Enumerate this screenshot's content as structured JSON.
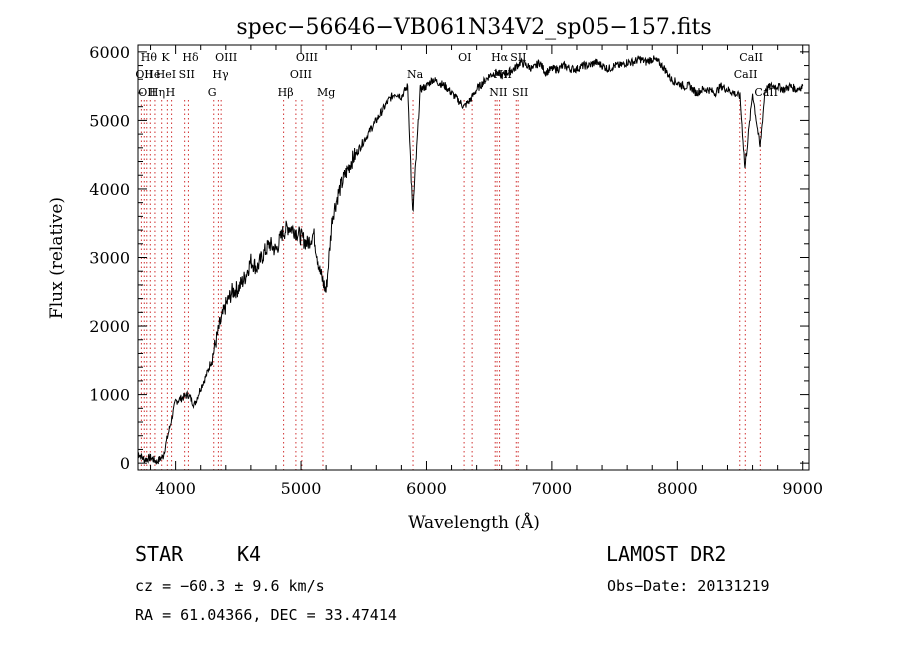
{
  "chart_data": {
    "type": "line",
    "title": "spec−56646−VB061N34V2_sp05−157.fits",
    "xlabel": "Wavelength (Å)",
    "ylabel": "Flux (relative)",
    "xlim": [
      3700,
      9050
    ],
    "ylim": [
      -100,
      6100
    ],
    "x_ticks": [
      4000,
      5000,
      6000,
      7000,
      8000,
      9000
    ],
    "y_ticks": [
      0,
      1000,
      2000,
      3000,
      4000,
      5000,
      6000
    ],
    "grid": false,
    "series": [
      {
        "line_color": "#000000",
        "x": [
          3700,
          3750,
          3800,
          3850,
          3900,
          3950,
          4000,
          4050,
          4100,
          4150,
          4200,
          4250,
          4300,
          4350,
          4400,
          4450,
          4500,
          4550,
          4600,
          4650,
          4700,
          4750,
          4800,
          4850,
          4900,
          4950,
          5000,
          5050,
          5100,
          5150,
          5200,
          5250,
          5300,
          5350,
          5400,
          5450,
          5500,
          5550,
          5600,
          5650,
          5700,
          5750,
          5800,
          5850,
          5890,
          5950,
          6000,
          6050,
          6100,
          6150,
          6200,
          6250,
          6300,
          6350,
          6400,
          6450,
          6500,
          6550,
          6600,
          6650,
          6700,
          6750,
          6800,
          6850,
          6900,
          6950,
          7000,
          7050,
          7100,
          7150,
          7200,
          7250,
          7300,
          7350,
          7400,
          7450,
          7500,
          7550,
          7600,
          7650,
          7700,
          7750,
          7800,
          7850,
          7900,
          7950,
          8000,
          8050,
          8100,
          8150,
          8200,
          8250,
          8300,
          8350,
          8400,
          8450,
          8500,
          8540,
          8600,
          8660,
          8700,
          8750,
          8800,
          8850,
          8900,
          8950,
          9000
        ],
        "y": [
          150,
          50,
          80,
          20,
          100,
          500,
          900,
          950,
          1000,
          850,
          1100,
          1300,
          1600,
          2000,
          2300,
          2500,
          2550,
          2700,
          2950,
          2850,
          3050,
          3200,
          3100,
          3350,
          3450,
          3400,
          3300,
          3200,
          3350,
          2800,
          2500,
          3600,
          3950,
          4200,
          4400,
          4550,
          4700,
          4850,
          5000,
          5150,
          5300,
          5400,
          5350,
          5500,
          3600,
          5450,
          5500,
          5600,
          5550,
          5500,
          5400,
          5300,
          5200,
          5300,
          5450,
          5550,
          5650,
          5700,
          5650,
          5700,
          5750,
          5850,
          5800,
          5750,
          5850,
          5700,
          5750,
          5750,
          5800,
          5750,
          5750,
          5800,
          5800,
          5850,
          5800,
          5750,
          5800,
          5800,
          5850,
          5850,
          5900,
          5850,
          5900,
          5850,
          5750,
          5600,
          5550,
          5500,
          5500,
          5400,
          5450,
          5450,
          5400,
          5500,
          5450,
          5400,
          5350,
          4300,
          5400,
          4600,
          5450,
          5500,
          5500,
          5450,
          5500,
          5450,
          5500
        ]
      }
    ],
    "line_markers": [
      {
        "wavelength": 3727,
        "label": "OII",
        "row": 1
      },
      {
        "wavelength": 3750,
        "label": "OII",
        "row": 2
      },
      {
        "wavelength": 3770,
        "label": "Hθ",
        "row": 0
      },
      {
        "wavelength": 3798,
        "label": "He",
        "row": 1
      },
      {
        "wavelength": 3835,
        "label": "Hη",
        "row": 2
      },
      {
        "wavelength": 3889,
        "label": "HeI",
        "row": 1
      },
      {
        "wavelength": 3934,
        "label": "K",
        "row": 0
      },
      {
        "wavelength": 3968,
        "label": "H",
        "row": 2
      },
      {
        "wavelength": 4072,
        "label": "SII",
        "row": 1
      },
      {
        "wavelength": 4102,
        "label": "Hδ",
        "row": 0
      },
      {
        "wavelength": 4304,
        "label": "G",
        "row": 2
      },
      {
        "wavelength": 4341,
        "label": "Hγ",
        "row": 1
      },
      {
        "wavelength": 4363,
        "label": "OIII",
        "row": 0
      },
      {
        "wavelength": 4861,
        "label": "Hβ",
        "row": 2
      },
      {
        "wavelength": 4959,
        "label": "OIII",
        "row": 1
      },
      {
        "wavelength": 5007,
        "label": "OIII",
        "row": 0
      },
      {
        "wavelength": 5175,
        "label": "Mg",
        "row": 2
      },
      {
        "wavelength": 5893,
        "label": "Na",
        "row": 1
      },
      {
        "wavelength": 6300,
        "label": "OI",
        "row": 0
      },
      {
        "wavelength": 6364,
        "label": "",
        "row": 0
      },
      {
        "wavelength": 6548,
        "label": "NII",
        "row": 2
      },
      {
        "wavelength": 6563,
        "label": "Hα",
        "row": 0
      },
      {
        "wavelength": 6583,
        "label": "NII",
        "row": 1
      },
      {
        "wavelength": 6716,
        "label": "SII",
        "row": 0
      },
      {
        "wavelength": 6731,
        "label": "SII",
        "row": 2
      },
      {
        "wavelength": 8498,
        "label": "CaII",
        "row": 1
      },
      {
        "wavelength": 8542,
        "label": "CaII",
        "row": 0
      },
      {
        "wavelength": 8662,
        "label": "CaII",
        "row": 2
      }
    ]
  },
  "info": {
    "class": "STAR",
    "subclass": "K4",
    "survey": "LAMOST DR2",
    "cz": "cz = −60.3 ± 9.6 km/s",
    "obs_date": "Obs−Date: 20131219",
    "coords": "RA =  61.04366, DEC =  33.47414"
  }
}
